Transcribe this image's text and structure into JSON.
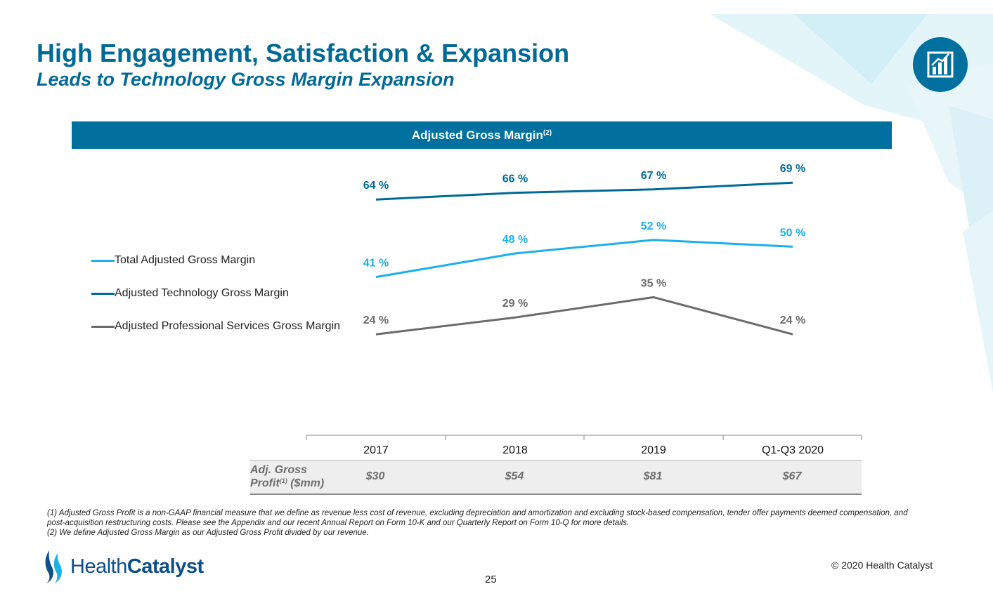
{
  "slide": {
    "title": "High Engagement, Satisfaction & Expansion",
    "subtitle": "Leads to Technology Gross Margin Expansion",
    "header_bar": "Adjusted Gross Margin",
    "header_bar_sup": "(2)",
    "corner_icon": "bar-chart-icon",
    "page_number": "25",
    "copyright": "© 2020 Health Catalyst",
    "logo_text_light": "Health",
    "logo_text_bold": "Catalyst"
  },
  "colors": {
    "title": "#006a96",
    "header_bar": "#00709e",
    "total": "#1ab0e8",
    "technology": "#006a96",
    "professional": "#6b6b6b"
  },
  "table": {
    "row_label_main": "Adj. Gross",
    "row_label_profit": "Profit",
    "row_label_sup": "(1)",
    "row_label_unit": " ($mm)",
    "values": [
      "$30",
      "$54",
      "$81",
      "$67"
    ]
  },
  "footnotes": [
    "(1) Adjusted Gross Profit is a non-GAAP financial measure that we define as revenue less cost of revenue, excluding depreciation and amortization and excluding stock-based compensation, tender offer payments deemed compensation, and post-acquisition restructuring costs. Please see the Appendix and our recent Annual Report on Form 10-K and our Quarterly Report on Form 10-Q for more details.",
    "(2) We define Adjusted Gross Margin as our Adjusted Gross Profit divided by our revenue."
  ],
  "chart_data": {
    "type": "line",
    "title": "Adjusted Gross Margin",
    "categories": [
      "2017",
      "2018",
      "2019",
      "Q1-Q3 2020"
    ],
    "value_suffix": " %",
    "legend_position": "left",
    "grid": false,
    "series": [
      {
        "name": "Total Adjusted Gross Margin",
        "values": [
          41,
          48,
          52,
          50
        ],
        "color": "#1ab0e8"
      },
      {
        "name": "Adjusted Technology Gross Margin",
        "values": [
          64,
          66,
          67,
          69
        ],
        "color": "#006a96"
      },
      {
        "name": "Adjusted Professional Services Gross Margin",
        "values": [
          24,
          29,
          35,
          24
        ],
        "color": "#6b6b6b"
      }
    ]
  }
}
